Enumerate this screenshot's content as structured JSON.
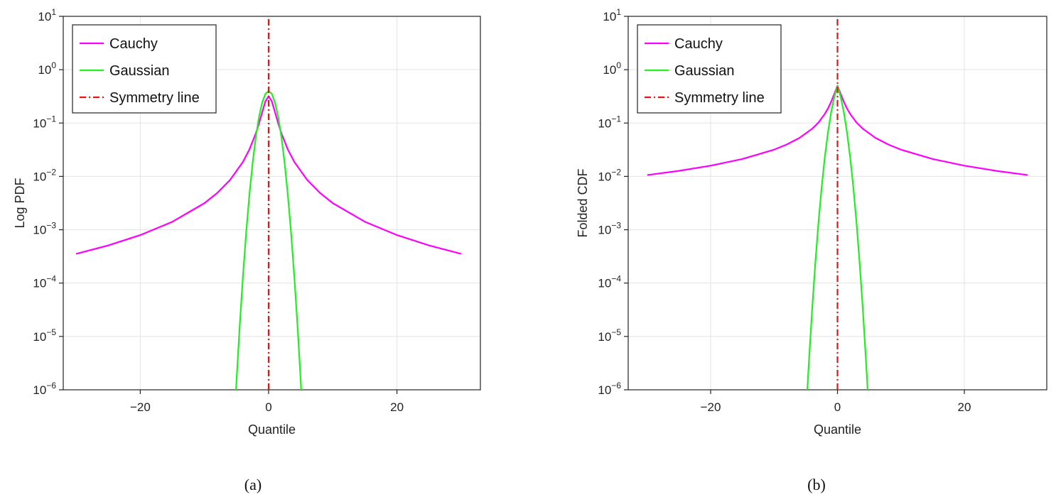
{
  "chart_data": [
    {
      "type": "line",
      "panel": "(a)",
      "xlabel": "Quantile",
      "ylabel": "Log PDF",
      "xlim": [
        -32,
        33
      ],
      "yscale": "log",
      "ylim": [
        1e-06,
        10
      ],
      "xticks": [
        {
          "value": -20,
          "label": "−20"
        },
        {
          "value": 0,
          "label": "0"
        },
        {
          "value": 20,
          "label": "20"
        }
      ],
      "yticks": [
        {
          "value": 10,
          "base": "10",
          "exp": "1"
        },
        {
          "value": 1,
          "base": "10",
          "exp": "0"
        },
        {
          "value": 0.1,
          "base": "10",
          "exp": "−1"
        },
        {
          "value": 0.01,
          "base": "10",
          "exp": "−2"
        },
        {
          "value": 0.001,
          "base": "10",
          "exp": "−3"
        },
        {
          "value": 0.0001,
          "base": "10",
          "exp": "−4"
        },
        {
          "value": 1e-05,
          "base": "10",
          "exp": "−5"
        },
        {
          "value": 1e-06,
          "base": "10",
          "exp": "−6"
        }
      ],
      "grid": true,
      "legend_position": "top-left",
      "series": [
        {
          "name": "Cauchy",
          "color": "#ff00ff",
          "x": [
            -30,
            -25,
            -20,
            -15,
            -10,
            -8,
            -6,
            -4,
            -3,
            -2,
            -1.5,
            -1,
            -0.5,
            0,
            0.5,
            1,
            1.5,
            2,
            3,
            4,
            6,
            8,
            10,
            15,
            20,
            25,
            30
          ],
          "y": [
            0.000353,
            0.000508,
            0.000794,
            0.00141,
            0.00315,
            0.0049,
            0.0086,
            0.0187,
            0.0318,
            0.0637,
            0.0979,
            0.159,
            0.255,
            0.318,
            0.255,
            0.159,
            0.0979,
            0.0637,
            0.0318,
            0.0187,
            0.0086,
            0.0049,
            0.00315,
            0.00141,
            0.000794,
            0.000508,
            0.000353
          ]
        },
        {
          "name": "Gaussian",
          "color": "#22ee22",
          "x": [
            -5.2,
            -5,
            -4.5,
            -4,
            -3.5,
            -3,
            -2.5,
            -2,
            -1.5,
            -1,
            -0.5,
            0,
            0.5,
            1,
            1.5,
            2,
            2.5,
            3,
            3.5,
            4,
            4.5,
            5,
            5.2
          ],
          "y": [
            5.1e-07,
            1.49e-06,
            1.6e-05,
            0.000134,
            0.000873,
            0.00443,
            0.0175,
            0.054,
            0.1295,
            0.242,
            0.352,
            0.399,
            0.352,
            0.242,
            0.1295,
            0.054,
            0.0175,
            0.00443,
            0.000873,
            0.000134,
            1.6e-05,
            1.49e-06,
            5.1e-07
          ]
        },
        {
          "name": "Symmetry line",
          "color": "#ee1111",
          "style": "dash-dot",
          "x": [
            0,
            0
          ],
          "y": [
            1e-06,
            10
          ]
        }
      ]
    },
    {
      "type": "line",
      "panel": "(b)",
      "xlabel": "Quantile",
      "ylabel": "Folded CDF",
      "xlim": [
        -33,
        33
      ],
      "yscale": "log",
      "ylim": [
        1e-06,
        10
      ],
      "xticks": [
        {
          "value": -20,
          "label": "−20"
        },
        {
          "value": 0,
          "label": "0"
        },
        {
          "value": 20,
          "label": "20"
        }
      ],
      "yticks": [
        {
          "value": 10,
          "base": "10",
          "exp": "1"
        },
        {
          "value": 1,
          "base": "10",
          "exp": "0"
        },
        {
          "value": 0.1,
          "base": "10",
          "exp": "−1"
        },
        {
          "value": 0.01,
          "base": "10",
          "exp": "−2"
        },
        {
          "value": 0.001,
          "base": "10",
          "exp": "−3"
        },
        {
          "value": 0.0001,
          "base": "10",
          "exp": "−4"
        },
        {
          "value": 1e-05,
          "base": "10",
          "exp": "−5"
        },
        {
          "value": 1e-06,
          "base": "10",
          "exp": "−6"
        }
      ],
      "grid": true,
      "legend_position": "top-left",
      "series": [
        {
          "name": "Cauchy",
          "color": "#ff00ff",
          "x": [
            -30,
            -25,
            -20,
            -15,
            -10,
            -8,
            -6,
            -4,
            -3,
            -2,
            -1.5,
            -1,
            -0.5,
            0,
            0.5,
            1,
            1.5,
            2,
            3,
            4,
            6,
            8,
            10,
            15,
            20,
            25,
            30
          ],
          "y": [
            0.0106,
            0.0127,
            0.0159,
            0.0212,
            0.0317,
            0.0396,
            0.0526,
            0.078,
            0.102,
            0.148,
            0.187,
            0.25,
            0.352,
            0.5,
            0.352,
            0.25,
            0.187,
            0.148,
            0.102,
            0.078,
            0.0526,
            0.0396,
            0.0317,
            0.0212,
            0.0159,
            0.0127,
            0.0106
          ]
        },
        {
          "name": "Gaussian",
          "color": "#22ee22",
          "x": [
            -4.8,
            -4.5,
            -4,
            -3.5,
            -3,
            -2.5,
            -2,
            -1.5,
            -1,
            -0.5,
            0,
            0.5,
            1,
            1.5,
            2,
            2.5,
            3,
            3.5,
            4,
            4.5,
            4.8
          ],
          "y": [
            8e-07,
            3.4e-06,
            3.17e-05,
            0.000233,
            0.00135,
            0.00621,
            0.0228,
            0.0668,
            0.159,
            0.309,
            0.5,
            0.309,
            0.159,
            0.0668,
            0.0228,
            0.00621,
            0.00135,
            0.000233,
            3.17e-05,
            3.4e-06,
            8e-07
          ]
        },
        {
          "name": "Symmetry line",
          "color": "#ee1111",
          "style": "dash-dot",
          "x": [
            0,
            0
          ],
          "y": [
            1e-06,
            10
          ]
        }
      ]
    }
  ]
}
